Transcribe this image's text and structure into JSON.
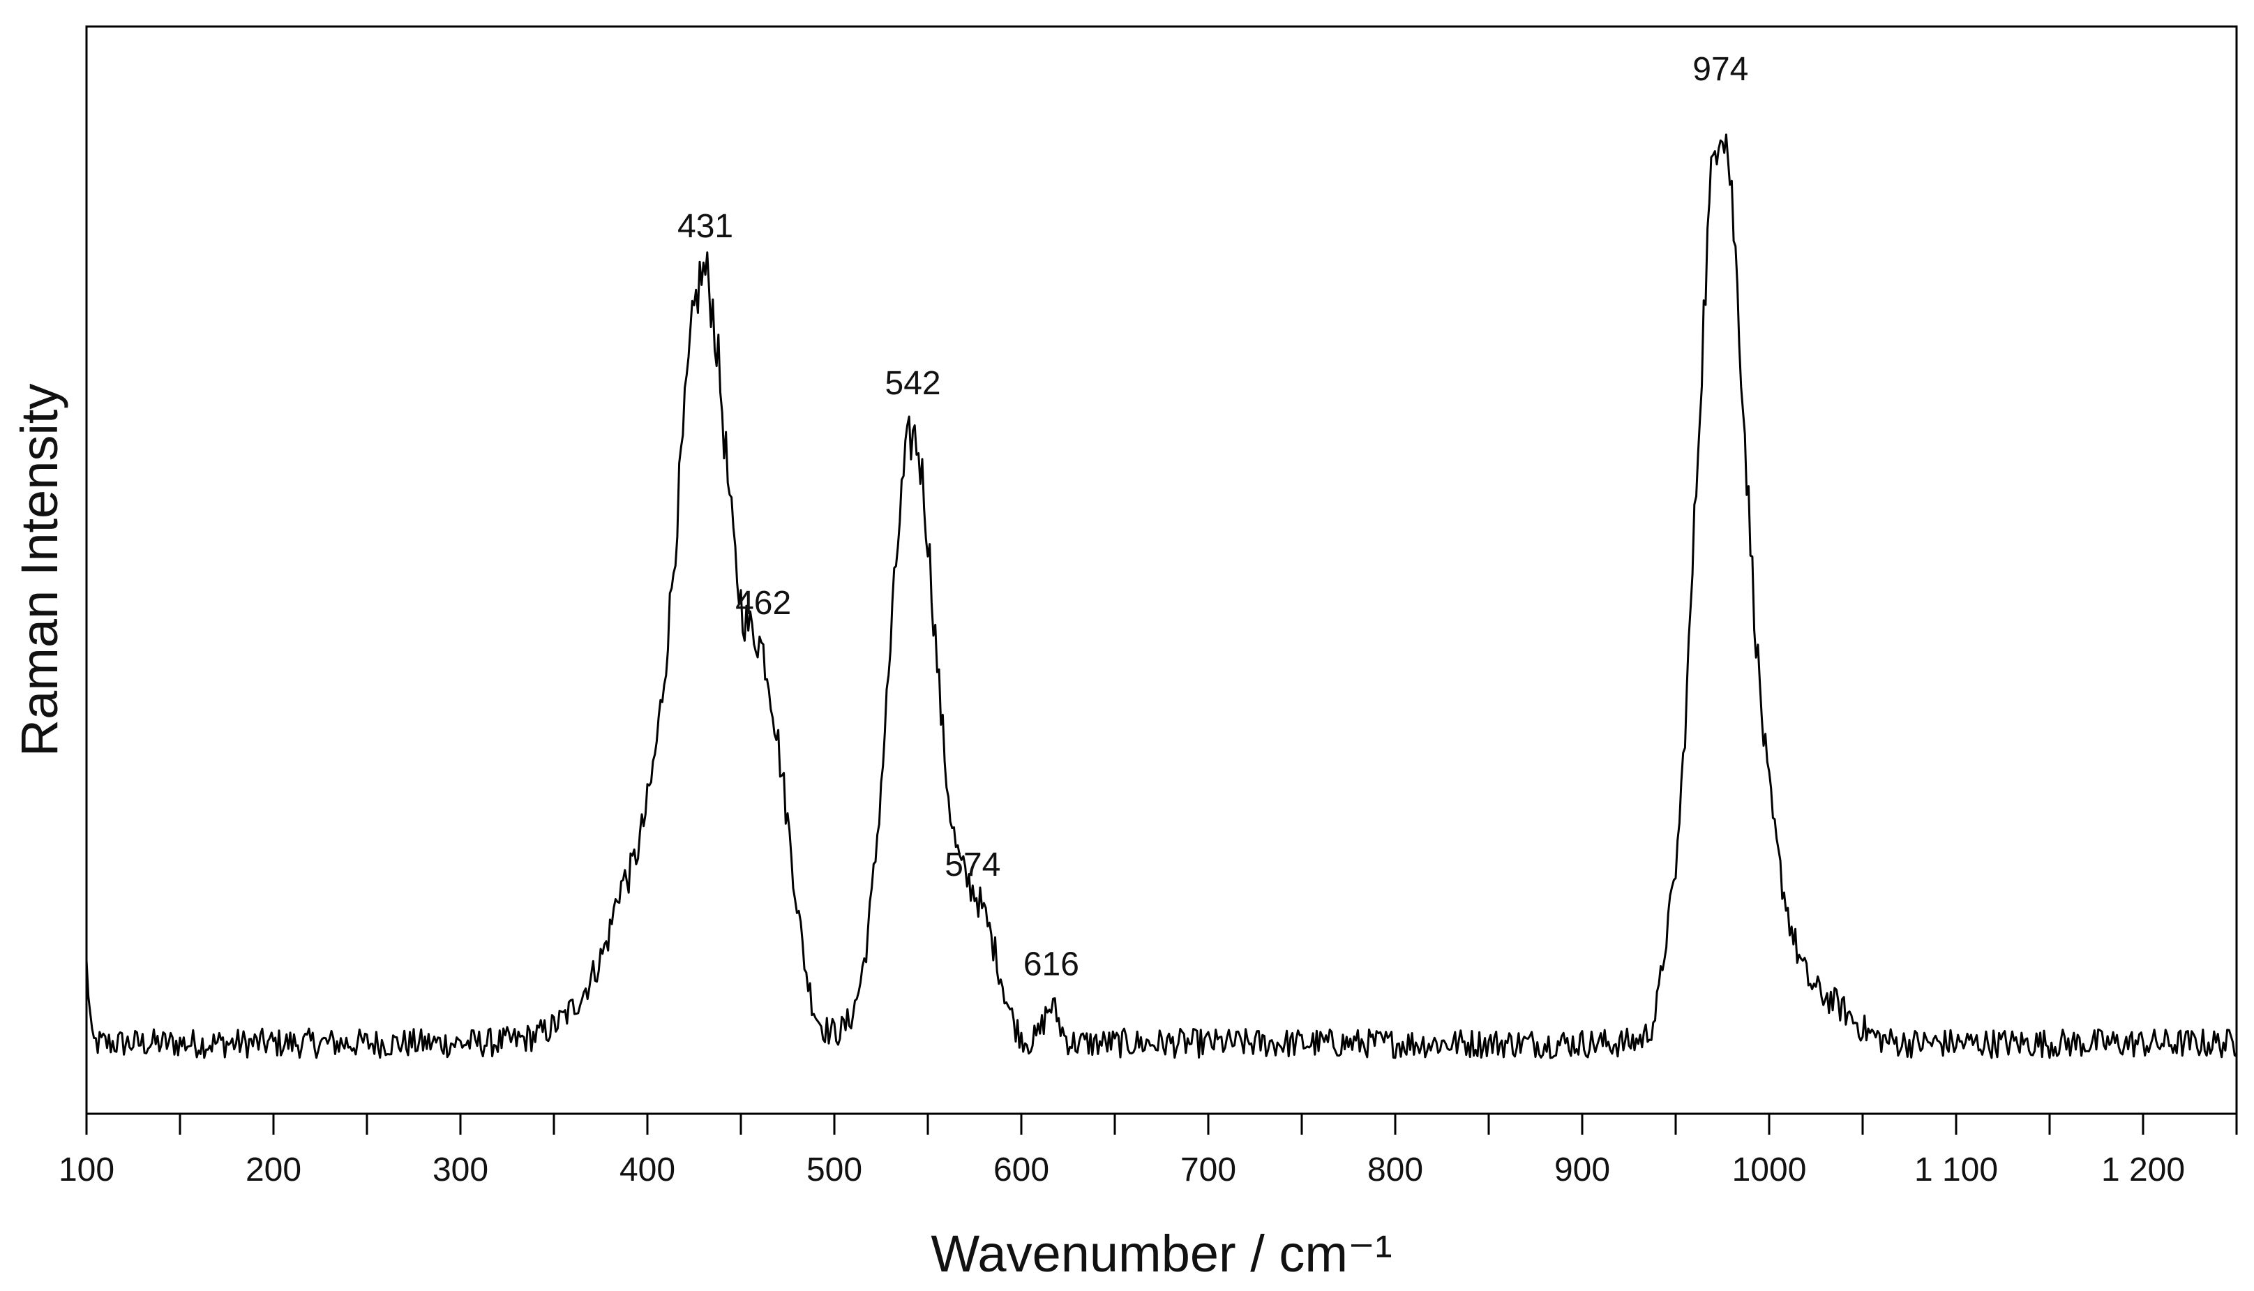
{
  "chart_data": {
    "type": "line",
    "xlabel": "Wavenumber / cm⁻¹",
    "ylabel": "Raman Intensity",
    "xlim": [
      100,
      1250
    ],
    "ylim": [
      0,
      100
    ],
    "y_ticks_shown": false,
    "grid": false,
    "x_major_ticks": [
      100,
      200,
      300,
      400,
      500,
      600,
      700,
      800,
      900,
      1000,
      1100,
      1200
    ],
    "x_tick_labels": [
      "100",
      "200",
      "300",
      "400",
      "500",
      "600",
      "700",
      "800",
      "900",
      "1000",
      "1 100",
      "1 200"
    ],
    "x_minor_ticks": [
      150,
      250,
      350,
      450,
      550,
      650,
      750,
      850,
      950,
      1050,
      1150,
      1250
    ],
    "baseline": 5.0,
    "noise_amplitude": 1.4,
    "peaks": [
      {
        "center": 385,
        "height": 2.0,
        "width": 3
      },
      {
        "center": 420,
        "height": 25,
        "width": 30
      },
      {
        "center": 431,
        "height": 50,
        "width": 13
      },
      {
        "center": 462,
        "height": 24,
        "width": 9
      },
      {
        "center": 476,
        "height": 8,
        "width": 7
      },
      {
        "center": 542,
        "height": 58,
        "width": 13
      },
      {
        "center": 574,
        "height": 11,
        "width": 9
      },
      {
        "center": 586,
        "height": 4,
        "width": 7
      },
      {
        "center": 616,
        "height": 3.5,
        "width": 4
      },
      {
        "center": 945,
        "height": 3.0,
        "width": 3
      },
      {
        "center": 974,
        "height": 88,
        "width": 13
      },
      {
        "center": 1002,
        "height": 12,
        "width": 11
      },
      {
        "center": 1030,
        "height": 4,
        "width": 14
      }
    ],
    "annotations": [
      {
        "label": "431",
        "x": 431,
        "y": 82
      },
      {
        "label": "462",
        "x": 462,
        "y": 46
      },
      {
        "label": "542",
        "x": 542,
        "y": 67
      },
      {
        "label": "574",
        "x": 574,
        "y": 21
      },
      {
        "label": "616",
        "x": 616,
        "y": 11.5
      },
      {
        "label": "974",
        "x": 974,
        "y": 97
      }
    ],
    "line_color": "#000000"
  }
}
